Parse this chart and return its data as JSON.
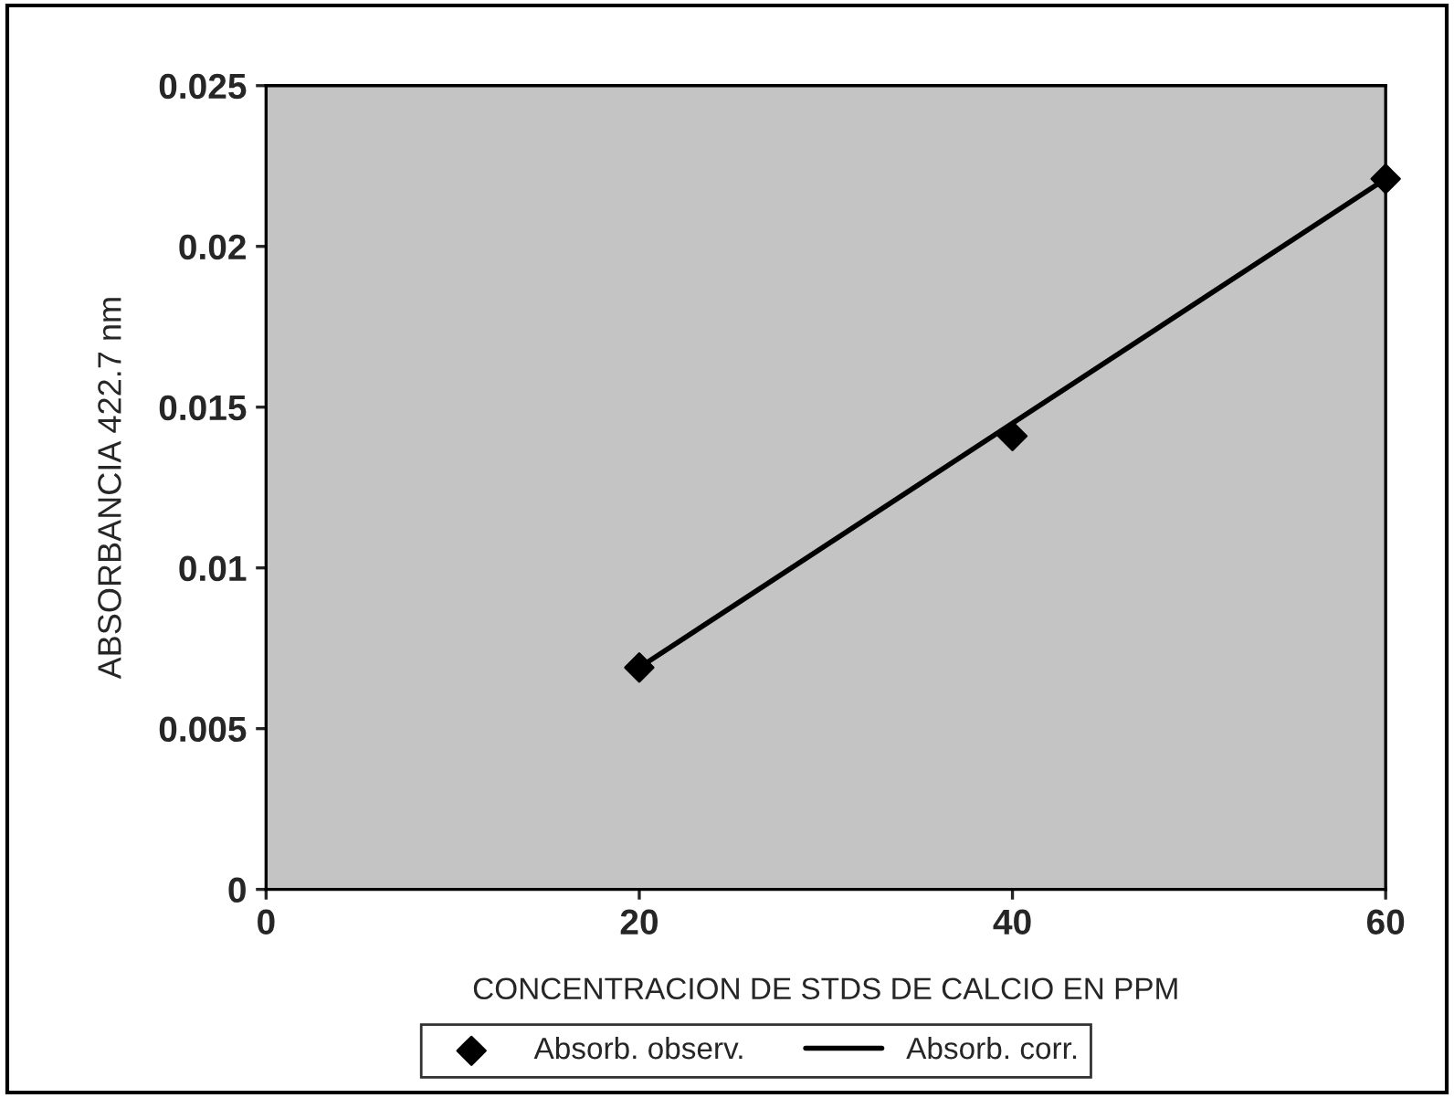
{
  "chart_data": {
    "type": "scatter",
    "xlabel": "CONCENTRACION DE STDS DE CALCIO EN PPM",
    "ylabel": "ABSORBANCIA 422.7 nm",
    "series": [
      {
        "name": "Absorb. observ.",
        "color": "#000000",
        "marker": "diamond",
        "x": [
          20,
          40,
          60
        ],
        "values": [
          0.0069,
          0.0141,
          0.0221
        ]
      },
      {
        "name": "Absorb. corr.",
        "type": "line",
        "color": "#000000",
        "marker": "none",
        "line_style": "solid",
        "x": [
          20,
          60
        ],
        "values": [
          0.0069,
          0.0221
        ]
      }
    ],
    "xlim": [
      0,
      60
    ],
    "xticks": [
      0,
      20,
      40,
      60
    ],
    "ylim": [
      0,
      0.025
    ],
    "yticks": [
      0,
      0.005,
      0.01,
      0.015,
      0.02,
      0.025
    ],
    "grid": false,
    "legend": "bottom"
  }
}
